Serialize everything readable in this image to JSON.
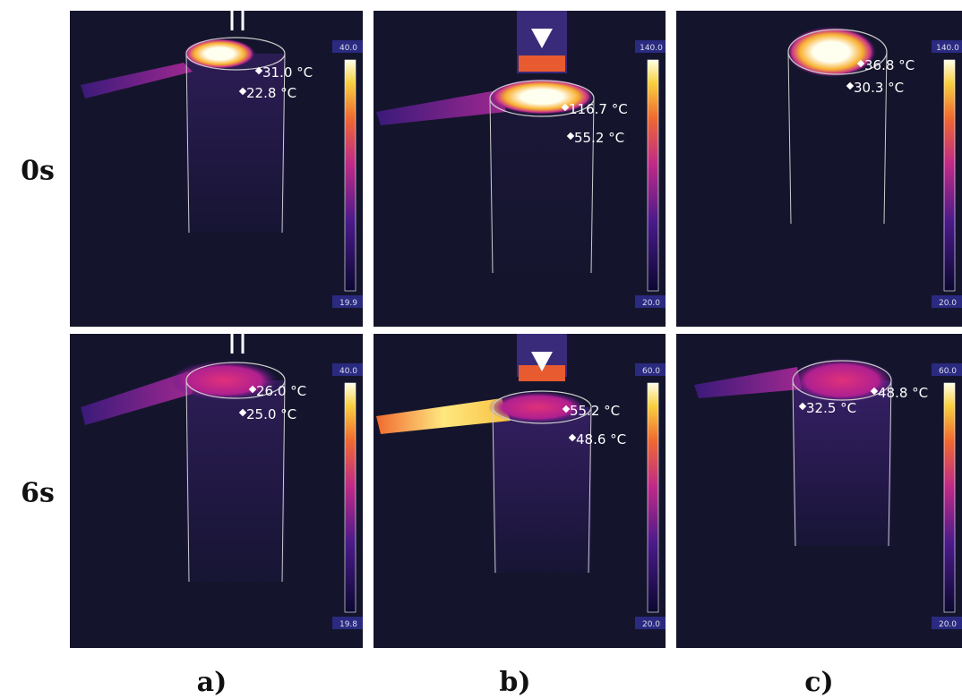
{
  "rows": [
    "0s",
    "6s"
  ],
  "columns": [
    "a)",
    "b)",
    "c)"
  ],
  "panels": [
    [
      {
        "readings": [
          "31.0 °C",
          "22.8 °C"
        ],
        "scale_max": "40.0",
        "scale_min": "19.9"
      },
      {
        "readings": [
          "116.7 °C",
          "55.2 °C"
        ],
        "scale_max": "140.0",
        "scale_min": "20.0"
      },
      {
        "readings": [
          "36.8 °C",
          "30.3 °C"
        ],
        "scale_max": "140.0",
        "scale_min": "20.0"
      }
    ],
    [
      {
        "readings": [
          "26.0 °C",
          "25.0 °C"
        ],
        "scale_max": "40.0",
        "scale_min": "19.8"
      },
      {
        "readings": [
          "55.2 °C",
          "48.6 °C"
        ],
        "scale_max": "60.0",
        "scale_min": "20.0"
      },
      {
        "readings": [
          "32.5 °C",
          "48.8 °C"
        ],
        "scale_max": "60.0",
        "scale_min": "20.0"
      }
    ]
  ]
}
